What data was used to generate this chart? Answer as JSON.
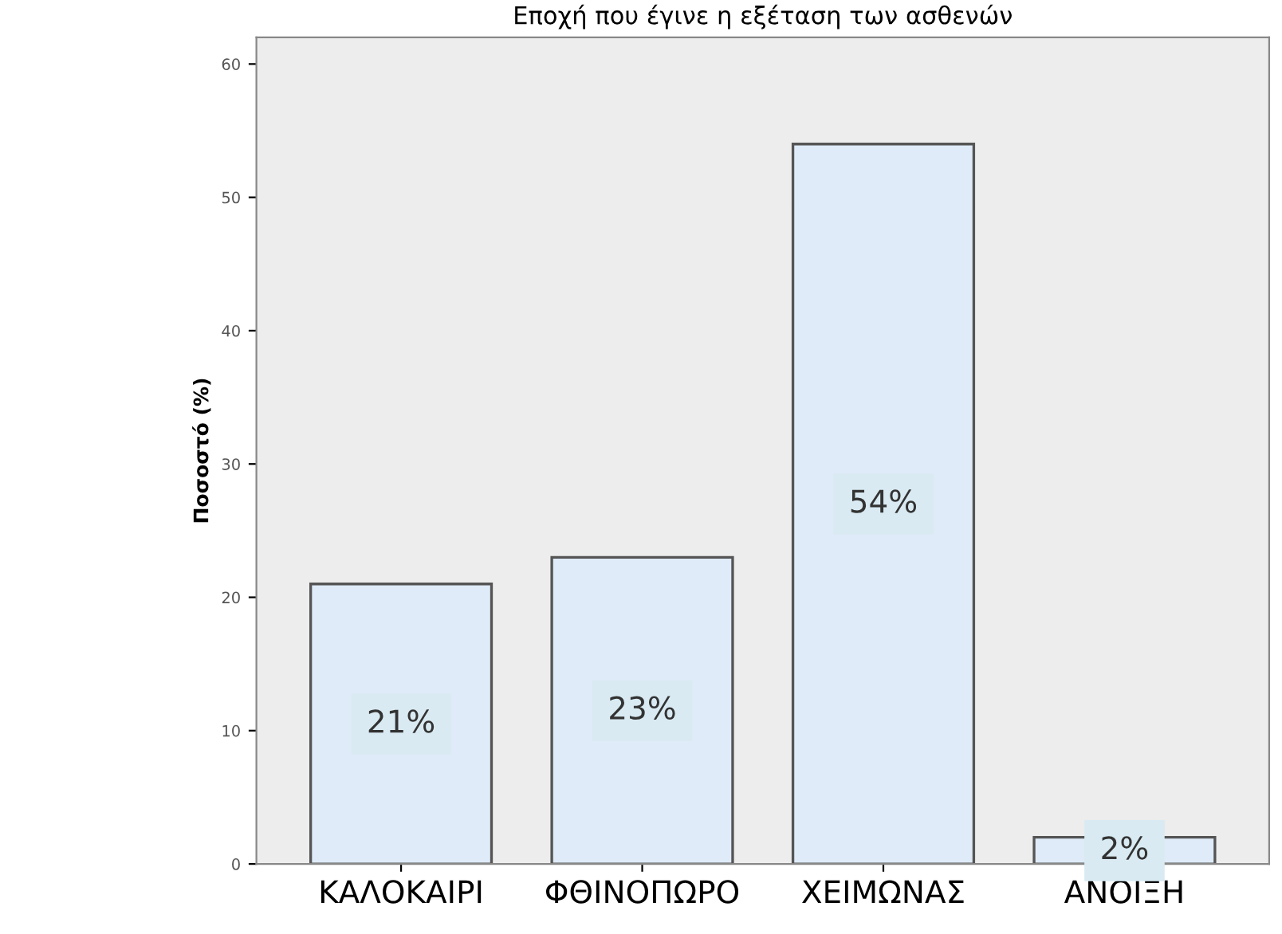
{
  "chart_data": {
    "type": "bar",
    "title": "Εποχή που έγινε η εξέταση των ασθενών",
    "ylabel": "Ποσοστό (%)",
    "categories": [
      "ΚΑΛΟΚΑΙΡΙ",
      "ΦΘΙΝΟΠΩΡΟ",
      "ΧΕΙΜΩΝΑΣ",
      "ΑΝΟΙΞΗ"
    ],
    "values": [
      21,
      23,
      54,
      2
    ],
    "color": "#dfebf8",
    "value_labels": [
      "21%",
      "23%",
      "54%",
      "2%"
    ],
    "ylim": [
      0,
      62
    ],
    "yticks": [
      0,
      10,
      20,
      30,
      40,
      50,
      60
    ],
    "grid": false
  }
}
